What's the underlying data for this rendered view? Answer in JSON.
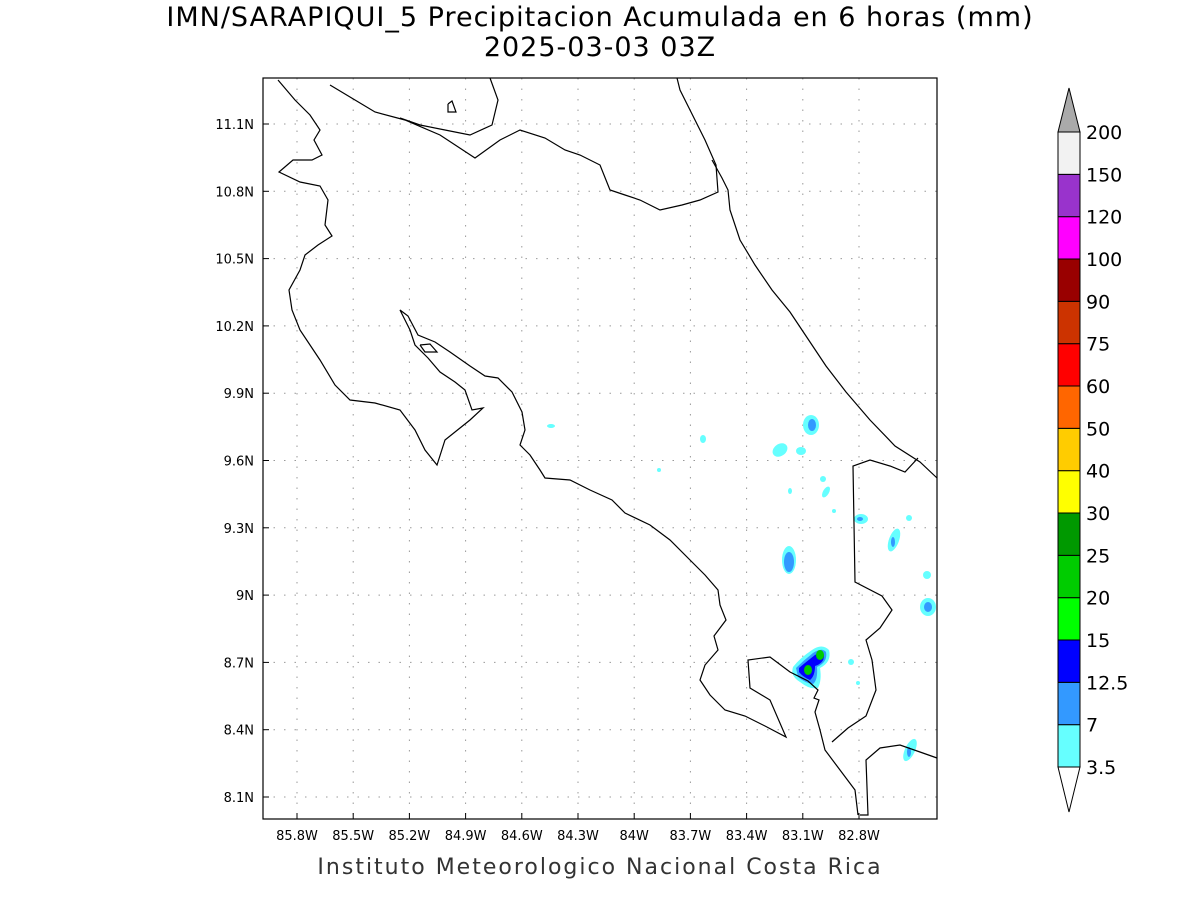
{
  "title": "IMN/SARAPIQUI_5 Precipitacion Acumulada en 6 horas (mm)",
  "subtitle": "2025-03-03 03Z",
  "footer": "Instituto Meteorologico Nacional Costa Rica",
  "lon_ticks": [
    "85.8W",
    "85.5W",
    "85.2W",
    "84.9W",
    "84.6W",
    "84.3W",
    "84W",
    "83.7W",
    "83.4W",
    "83.1W",
    "82.8W"
  ],
  "lat_ticks": [
    "11.1N",
    "10.8N",
    "10.5N",
    "10.2N",
    "9.9N",
    "9.6N",
    "9.3N",
    "9N",
    "8.7N",
    "8.4N",
    "8.1N"
  ],
  "colorbar": {
    "levels": [
      "3.5",
      "7",
      "12.5",
      "15",
      "20",
      "25",
      "30",
      "40",
      "50",
      "60",
      "75",
      "90",
      "100",
      "120",
      "150",
      "200"
    ],
    "colors": [
      "#66ffff",
      "#3399ff",
      "#0000ff",
      "#00ff00",
      "#00cc00",
      "#009900",
      "#ffff00",
      "#ffcc00",
      "#ff6600",
      "#ff0000",
      "#cc3300",
      "#990000",
      "#ff00ff",
      "#9933cc",
      "#f2f2f2"
    ],
    "over_color": "#aaaaaa",
    "under_color": "#ffffff"
  }
}
